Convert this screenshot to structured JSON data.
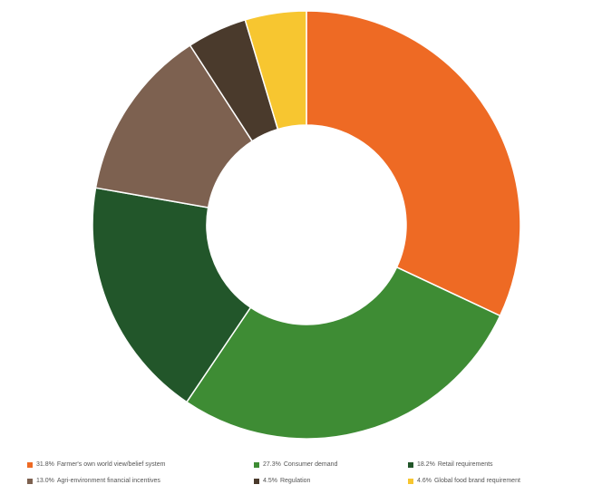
{
  "chart_data": {
    "type": "pie",
    "variant": "donut",
    "title": "",
    "slices": [
      {
        "pct_label": "31.8%",
        "label": "Farmer's own world view/belief system",
        "value": 31.8,
        "color": "#EE6A24"
      },
      {
        "pct_label": "27.3%",
        "label": "Consumer demand",
        "value": 27.3,
        "color": "#3E8C34"
      },
      {
        "pct_label": "18.2%",
        "label": "Retail requirements",
        "value": 18.2,
        "color": "#22562A"
      },
      {
        "pct_label": "13.0%",
        "label": "Agri-environment financial incentives",
        "value": 13.0,
        "color": "#7D6150"
      },
      {
        "pct_label": "4.5%",
        "label": "Regulation",
        "value": 4.5,
        "color": "#4A3A2C"
      },
      {
        "pct_label": "4.6%",
        "label": "Global food brand requirement",
        "value": 4.6,
        "color": "#F7C630"
      }
    ],
    "start_angle_deg": 0,
    "direction": "clockwise",
    "legend_position": "bottom"
  }
}
